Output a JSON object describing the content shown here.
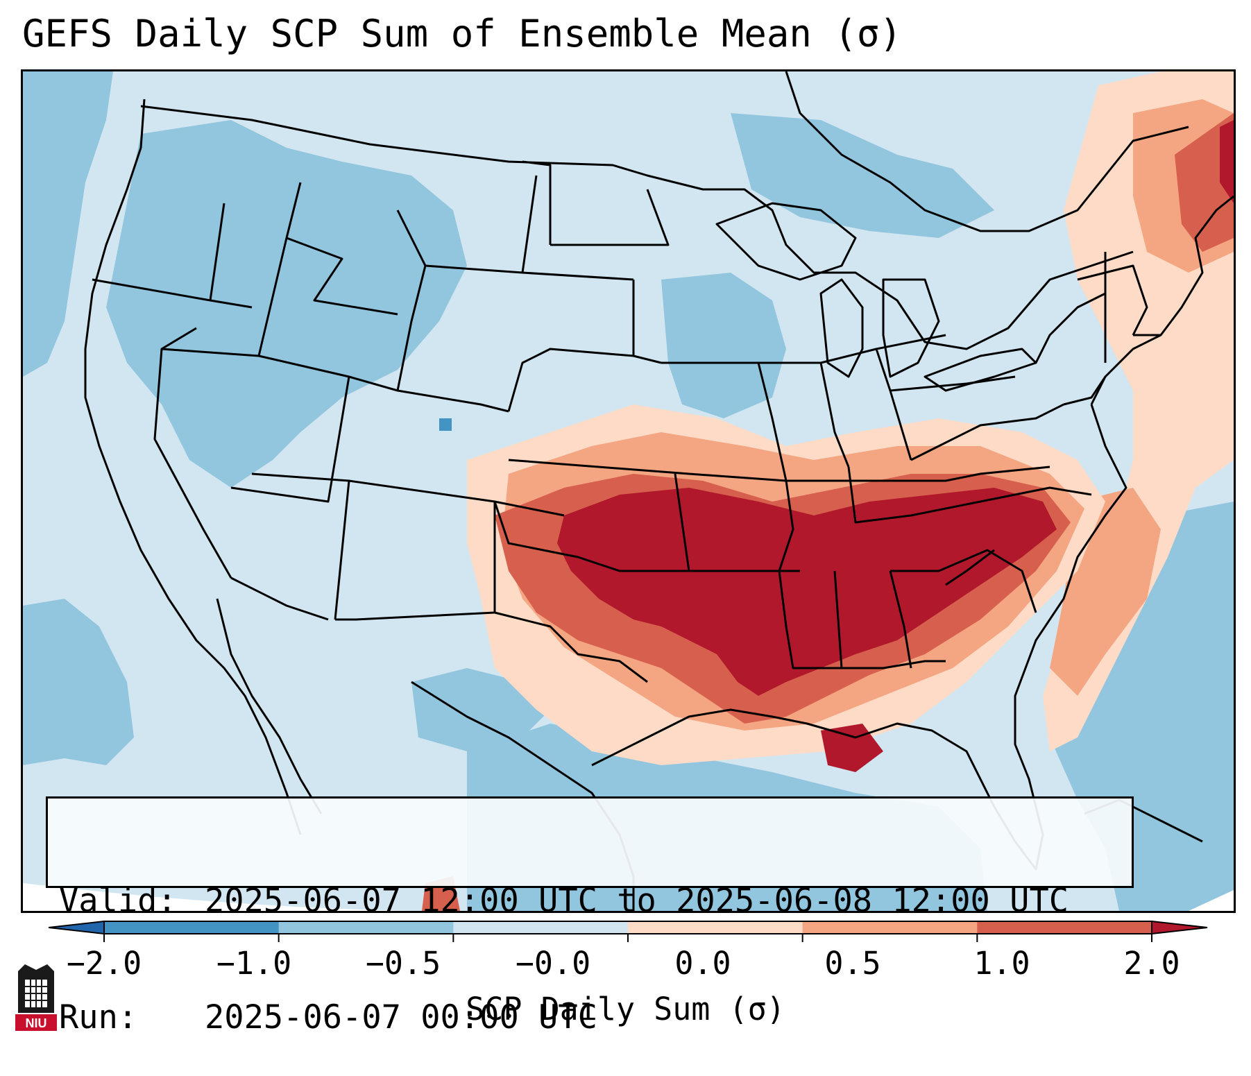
{
  "title": "GEFS Daily SCP Sum of Ensemble Mean (σ)",
  "info_box": {
    "valid_label": "Valid:",
    "valid_value": "2025-06-07 12:00 UTC to 2025-06-08 12:00 UTC",
    "run_label": "Run:",
    "run_value": "2025-06-07 00:00 UTC"
  },
  "colorbar": {
    "label": "SCP Daily Sum (σ)",
    "ticks": [
      "−2.0",
      "−1.0",
      "−0.5",
      "−0.0",
      "0.0",
      "0.5",
      "1.0",
      "2.0"
    ],
    "colors": [
      "#4393c3",
      "#92c5de",
      "#d1e5f0",
      "#fddbc7",
      "#f4a582",
      "#d6604d"
    ],
    "extend_low": "#2166ac",
    "extend_high": "#b2182b"
  },
  "legend_classes": {
    "very_low": "#4393c3",
    "low": "#92c5de",
    "near_neg": "#d1e5f0",
    "near_pos": "#fddbc7",
    "moderate": "#f4a582",
    "high": "#d6604d",
    "very_high": "#b2182b"
  },
  "logo": {
    "text": "NIU",
    "color": "#c8102e"
  }
}
